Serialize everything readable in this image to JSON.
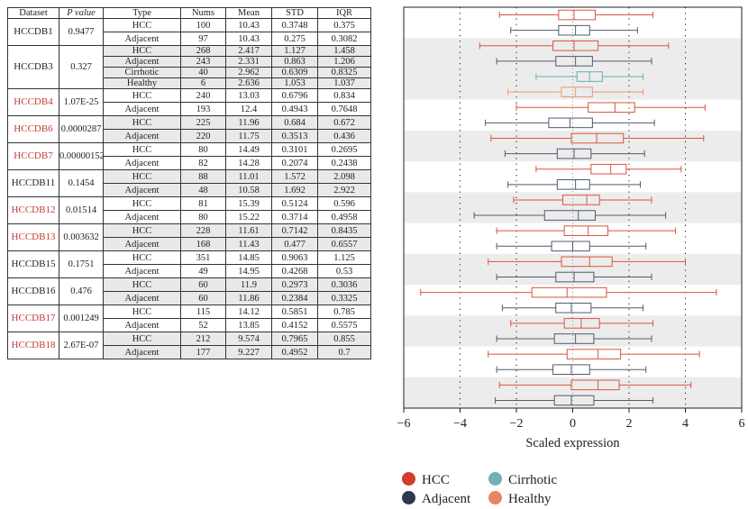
{
  "table": {
    "headers": [
      "Dataset",
      "P value",
      "Type",
      "Nums",
      "Mean",
      "STD",
      "IQR"
    ],
    "groups": [
      {
        "dataset": "HCCDB1",
        "significant": false,
        "pvalue": "0.9477",
        "rows": [
          {
            "type": "HCC",
            "nums": "100",
            "mean": "10.43",
            "std": "0.3748",
            "iqr": "0.375"
          },
          {
            "type": "Adjacent",
            "nums": "97",
            "mean": "10.43",
            "std": "0.275",
            "iqr": "0.3082"
          }
        ]
      },
      {
        "dataset": "HCCDB3",
        "significant": false,
        "pvalue": "0.327",
        "rows": [
          {
            "type": "HCC",
            "nums": "268",
            "mean": "2.417",
            "std": "1.127",
            "iqr": "1.458"
          },
          {
            "type": "Adjacent",
            "nums": "243",
            "mean": "2.331",
            "std": "0.863",
            "iqr": "1.206"
          },
          {
            "type": "Cirrhotic",
            "nums": "40",
            "mean": "2.962",
            "std": "0.6309",
            "iqr": "0.8325"
          },
          {
            "type": "Healthy",
            "nums": "6",
            "mean": "2.636",
            "std": "1.053",
            "iqr": "1.037"
          }
        ]
      },
      {
        "dataset": "HCCDB4",
        "significant": true,
        "pvalue": "1.07E-25",
        "rows": [
          {
            "type": "HCC",
            "nums": "240",
            "mean": "13.03",
            "std": "0.6796",
            "iqr": "0.834"
          },
          {
            "type": "Adjacent",
            "nums": "193",
            "mean": "12.4",
            "std": "0.4943",
            "iqr": "0.7648"
          }
        ]
      },
      {
        "dataset": "HCCDB6",
        "significant": true,
        "pvalue": "0.0000287",
        "rows": [
          {
            "type": "HCC",
            "nums": "225",
            "mean": "11.96",
            "std": "0.684",
            "iqr": "0.672"
          },
          {
            "type": "Adjacent",
            "nums": "220",
            "mean": "11.75",
            "std": "0.3513",
            "iqr": "0.436"
          }
        ]
      },
      {
        "dataset": "HCCDB7",
        "significant": true,
        "pvalue": "0.00000152",
        "rows": [
          {
            "type": "HCC",
            "nums": "80",
            "mean": "14.49",
            "std": "0.3101",
            "iqr": "0.2695"
          },
          {
            "type": "Adjacent",
            "nums": "82",
            "mean": "14.28",
            "std": "0.2074",
            "iqr": "0.2438"
          }
        ]
      },
      {
        "dataset": "HCCDB11",
        "significant": false,
        "pvalue": "0.1454",
        "rows": [
          {
            "type": "HCC",
            "nums": "88",
            "mean": "11.01",
            "std": "1.572",
            "iqr": "2.098"
          },
          {
            "type": "Adjacent",
            "nums": "48",
            "mean": "10.58",
            "std": "1.692",
            "iqr": "2.922"
          }
        ]
      },
      {
        "dataset": "HCCDB12",
        "significant": true,
        "pvalue": "0.01514",
        "rows": [
          {
            "type": "HCC",
            "nums": "81",
            "mean": "15.39",
            "std": "0.5124",
            "iqr": "0.596"
          },
          {
            "type": "Adjacent",
            "nums": "80",
            "mean": "15.22",
            "std": "0.3714",
            "iqr": "0.4958"
          }
        ]
      },
      {
        "dataset": "HCCDB13",
        "significant": true,
        "pvalue": "0.003632",
        "rows": [
          {
            "type": "HCC",
            "nums": "228",
            "mean": "11.61",
            "std": "0.7142",
            "iqr": "0.8435"
          },
          {
            "type": "Adjacent",
            "nums": "168",
            "mean": "11.43",
            "std": "0.477",
            "iqr": "0.6557"
          }
        ]
      },
      {
        "dataset": "HCCDB15",
        "significant": false,
        "pvalue": "0.1751",
        "rows": [
          {
            "type": "HCC",
            "nums": "351",
            "mean": "14.85",
            "std": "0.9063",
            "iqr": "1.125"
          },
          {
            "type": "Adjacent",
            "nums": "49",
            "mean": "14.95",
            "std": "0.4268",
            "iqr": "0.53"
          }
        ]
      },
      {
        "dataset": "HCCDB16",
        "significant": false,
        "pvalue": "0.476",
        "rows": [
          {
            "type": "HCC",
            "nums": "60",
            "mean": "11.9",
            "std": "0.2973",
            "iqr": "0.3036"
          },
          {
            "type": "Adjacent",
            "nums": "60",
            "mean": "11.86",
            "std": "0.2384",
            "iqr": "0.3325"
          }
        ]
      },
      {
        "dataset": "HCCDB17",
        "significant": true,
        "pvalue": "0.001249",
        "rows": [
          {
            "type": "HCC",
            "nums": "115",
            "mean": "14.12",
            "std": "0.5851",
            "iqr": "0.785"
          },
          {
            "type": "Adjacent",
            "nums": "52",
            "mean": "13.85",
            "std": "0.4152",
            "iqr": "0.5575"
          }
        ]
      },
      {
        "dataset": "HCCDB18",
        "significant": true,
        "pvalue": "2.67E-07",
        "rows": [
          {
            "type": "HCC",
            "nums": "212",
            "mean": "9.574",
            "std": "0.7965",
            "iqr": "0.855"
          },
          {
            "type": "Adjacent",
            "nums": "177",
            "mean": "9.227",
            "std": "0.4952",
            "iqr": "0.7"
          }
        ]
      }
    ]
  },
  "chart_data": {
    "type": "boxplot",
    "orientation": "horizontal",
    "xlabel": "Scaled expression",
    "xlim": [
      -6,
      6
    ],
    "xticks": [
      "−6",
      "−4",
      "−2",
      "0",
      "2",
      "4",
      "6"
    ],
    "reference_lines": [
      -4,
      -2,
      2,
      4
    ],
    "series_colors": {
      "HCC": "#d9553f",
      "Adjacent": "#4f5b6e",
      "Cirrhotic": "#6aaeb8",
      "Healthy": "#e89a74"
    },
    "boxes": [
      {
        "dataset": "HCCDB1",
        "type": "HCC",
        "min": -2.6,
        "q1": -0.5,
        "median": 0.05,
        "q3": 0.8,
        "max": 2.85
      },
      {
        "dataset": "HCCDB1",
        "type": "Adjacent",
        "min": -2.2,
        "q1": -0.5,
        "median": 0.1,
        "q3": 0.6,
        "max": 2.3
      },
      {
        "dataset": "HCCDB3",
        "type": "HCC",
        "min": -3.3,
        "q1": -0.7,
        "median": 0.05,
        "q3": 0.9,
        "max": 3.4
      },
      {
        "dataset": "HCCDB3",
        "type": "Adjacent",
        "min": -2.7,
        "q1": -0.6,
        "median": 0.1,
        "q3": 0.7,
        "max": 2.8
      },
      {
        "dataset": "HCCDB3",
        "type": "Cirrhotic",
        "min": -1.3,
        "q1": 0.15,
        "median": 0.6,
        "q3": 1.05,
        "max": 2.5
      },
      {
        "dataset": "HCCDB3",
        "type": "Healthy",
        "min": -2.3,
        "q1": -0.4,
        "median": 0.1,
        "q3": 0.7,
        "max": 2.5
      },
      {
        "dataset": "HCCDB4",
        "type": "HCC",
        "min": -2.0,
        "q1": 0.55,
        "median": 1.5,
        "q3": 2.2,
        "max": 4.7
      },
      {
        "dataset": "HCCDB4",
        "type": "Adjacent",
        "min": -3.1,
        "q1": -0.85,
        "median": -0.1,
        "q3": 0.7,
        "max": 2.9
      },
      {
        "dataset": "HCCDB6",
        "type": "HCC",
        "min": -2.9,
        "q1": -0.05,
        "median": 0.85,
        "q3": 1.8,
        "max": 4.65
      },
      {
        "dataset": "HCCDB6",
        "type": "Adjacent",
        "min": -2.4,
        "q1": -0.55,
        "median": 0.05,
        "q3": 0.65,
        "max": 2.55
      },
      {
        "dataset": "HCCDB7",
        "type": "HCC",
        "min": -1.3,
        "q1": 0.65,
        "median": 1.35,
        "q3": 1.9,
        "max": 3.85
      },
      {
        "dataset": "HCCDB7",
        "type": "Adjacent",
        "min": -2.3,
        "q1": -0.55,
        "median": 0.1,
        "q3": 0.6,
        "max": 2.4
      },
      {
        "dataset": "HCCDB11",
        "type": "HCC",
        "min": -2.1,
        "q1": -0.35,
        "median": 0.5,
        "q3": 0.95,
        "max": 2.8
      },
      {
        "dataset": "HCCDB11",
        "type": "Adjacent",
        "min": -3.5,
        "q1": -1.0,
        "median": 0.2,
        "q3": 0.8,
        "max": 3.3
      },
      {
        "dataset": "HCCDB12",
        "type": "HCC",
        "min": -2.7,
        "q1": -0.3,
        "median": 0.55,
        "q3": 1.25,
        "max": 3.65
      },
      {
        "dataset": "HCCDB12",
        "type": "Adjacent",
        "min": -2.7,
        "q1": -0.75,
        "median": 0.0,
        "q3": 0.6,
        "max": 2.6
      },
      {
        "dataset": "HCCDB13",
        "type": "HCC",
        "min": -3.0,
        "q1": -0.4,
        "median": 0.6,
        "q3": 1.4,
        "max": 4.0
      },
      {
        "dataset": "HCCDB13",
        "type": "Adjacent",
        "min": -2.7,
        "q1": -0.6,
        "median": 0.05,
        "q3": 0.75,
        "max": 2.8
      },
      {
        "dataset": "HCCDB15",
        "type": "HCC",
        "min": -5.4,
        "q1": -1.45,
        "median": -0.2,
        "q3": 1.2,
        "max": 5.1
      },
      {
        "dataset": "HCCDB15",
        "type": "Adjacent",
        "min": -2.5,
        "q1": -0.6,
        "median": -0.05,
        "q3": 0.65,
        "max": 2.5
      },
      {
        "dataset": "HCCDB16",
        "type": "HCC",
        "min": -2.2,
        "q1": -0.3,
        "median": 0.3,
        "q3": 0.95,
        "max": 2.85
      },
      {
        "dataset": "HCCDB16",
        "type": "Adjacent",
        "min": -2.7,
        "q1": -0.65,
        "median": 0.1,
        "q3": 0.75,
        "max": 2.8
      },
      {
        "dataset": "HCCDB17",
        "type": "HCC",
        "min": -3.0,
        "q1": -0.2,
        "median": 0.9,
        "q3": 1.7,
        "max": 4.5
      },
      {
        "dataset": "HCCDB17",
        "type": "Adjacent",
        "min": -2.7,
        "q1": -0.7,
        "median": -0.05,
        "q3": 0.6,
        "max": 2.6
      },
      {
        "dataset": "HCCDB18",
        "type": "HCC",
        "min": -2.6,
        "q1": -0.05,
        "median": 0.9,
        "q3": 1.65,
        "max": 4.2
      },
      {
        "dataset": "HCCDB18",
        "type": "Adjacent",
        "min": -2.75,
        "q1": -0.65,
        "median": -0.05,
        "q3": 0.75,
        "max": 2.85
      }
    ],
    "legend": {
      "placement": "bottom",
      "entries": [
        {
          "label": "HCC",
          "color": "#d23b2e"
        },
        {
          "label": "Cirrhotic",
          "color": "#72aeb8"
        },
        {
          "label": "Adjacent",
          "color": "#2c3a4e"
        },
        {
          "label": "Healthy",
          "color": "#e68660"
        }
      ]
    }
  }
}
